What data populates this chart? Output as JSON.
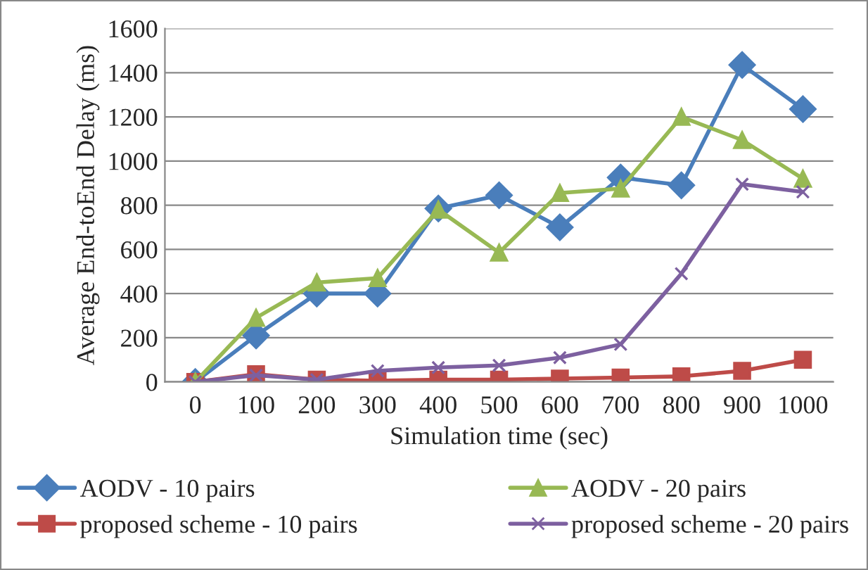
{
  "chart_data": {
    "type": "line",
    "xlabel": "Simulation time (sec)",
    "ylabel": "Average End-toEnd Delay (ms)",
    "categories": [
      "0",
      "100",
      "200",
      "300",
      "400",
      "500",
      "600",
      "700",
      "800",
      "900",
      "1000"
    ],
    "series": [
      {
        "name": "AODV - 10 pairs",
        "color": "#4a7ebb",
        "marker": "diamond",
        "values": [
          0,
          210,
          400,
          400,
          785,
          845,
          700,
          925,
          890,
          1435,
          1235
        ]
      },
      {
        "name": "proposed scheme - 10 pairs",
        "color": "#be4b48",
        "marker": "square",
        "values": [
          0,
          35,
          10,
          5,
          10,
          10,
          15,
          20,
          25,
          50,
          100
        ]
      },
      {
        "name": "AODV - 20 pairs",
        "color": "#98b954",
        "marker": "triangle",
        "values": [
          0,
          290,
          450,
          470,
          780,
          585,
          855,
          875,
          1200,
          1095,
          920
        ]
      },
      {
        "name": "proposed scheme - 20 pairs",
        "color": "#7d60a0",
        "marker": "cross",
        "values": [
          0,
          30,
          10,
          50,
          65,
          75,
          110,
          170,
          490,
          895,
          860
        ]
      }
    ],
    "ylim": [
      0,
      1600
    ],
    "yticks": [
      0,
      200,
      400,
      600,
      800,
      1000,
      1200,
      1400,
      1600
    ],
    "grid": "y",
    "legend": "bottom",
    "line_style": "solid"
  }
}
